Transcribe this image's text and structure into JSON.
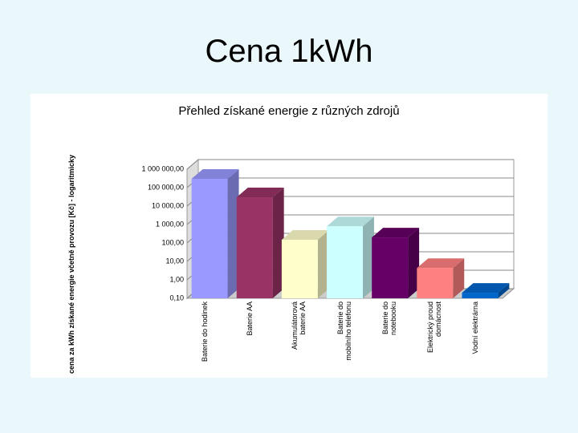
{
  "slide_title": "Cena 1kWh",
  "chart_data": {
    "type": "bar3d",
    "title": "Přehled získané energie z různých zdrojů",
    "y_label": "cena za kWh získané energie včetně provozu [Kč] - logaritmicky",
    "categories": [
      "Baterie do hodinek",
      "Baterie AA",
      "Akumulátorová baterie AA",
      "Baterie do mobilního telefonu",
      "Baterie do notebooku",
      "Elektrický proud domácnost",
      "Vodní elektrárna"
    ],
    "values": [
      300000,
      30000,
      150,
      800,
      200,
      4.4,
      0.2
    ],
    "colors": [
      "#9999ff",
      "#993366",
      "#ffffcc",
      "#ccffff",
      "#660066",
      "#ff8080",
      "#0066cc"
    ],
    "y_scale": "log",
    "ylim": [
      0.1,
      1000000
    ],
    "yticks": [
      {
        "value": 0.1,
        "label": "0,10"
      },
      {
        "value": 1,
        "label": "1,00"
      },
      {
        "value": 10,
        "label": "10,00"
      },
      {
        "value": 100,
        "label": "100,00"
      },
      {
        "value": 1000,
        "label": "1 000,00"
      },
      {
        "value": 10000,
        "label": "10 000,00"
      },
      {
        "value": 100000,
        "label": "100 000,00"
      },
      {
        "value": 1000000,
        "label": "1 000 000,00"
      }
    ],
    "grid": true
  }
}
